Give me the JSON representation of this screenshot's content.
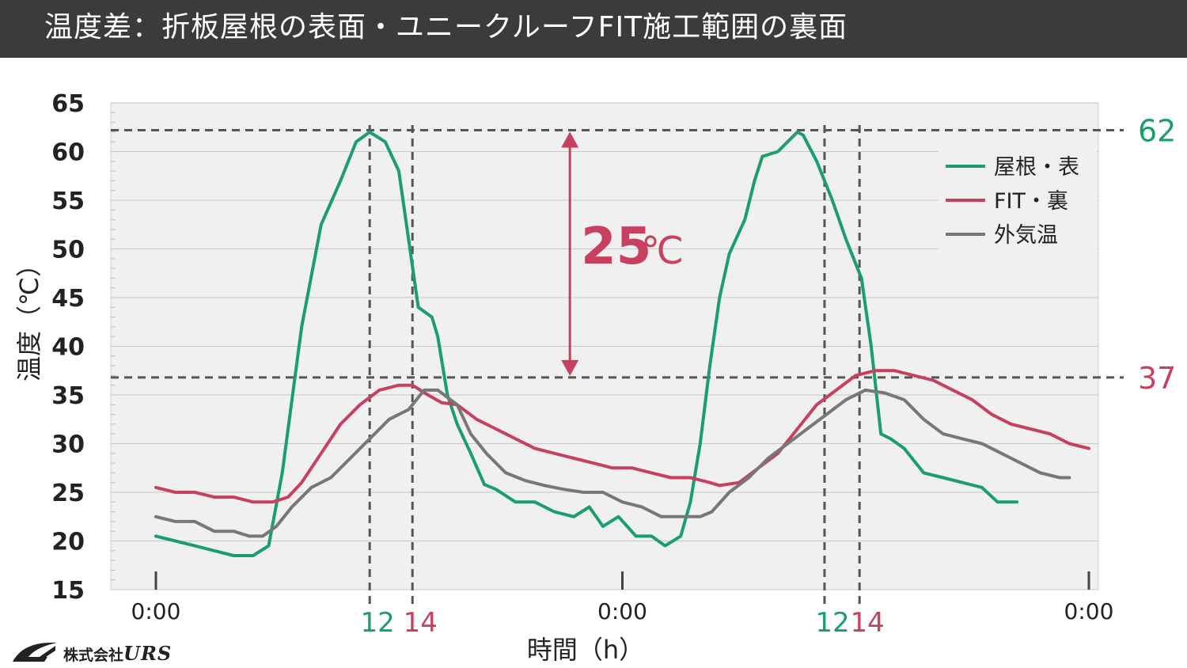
{
  "title": "温度差：折板屋根の表面・ユニークルーフFIT施工範囲の裏面",
  "logo": {
    "prefix": "株式会社",
    "brand": "URS"
  },
  "chart_data": {
    "type": "line",
    "xlabel": "時間（h）",
    "ylabel": "温度（℃）",
    "ylim": [
      15,
      65
    ],
    "yticks": [
      15,
      20,
      25,
      30,
      35,
      40,
      45,
      50,
      55,
      60,
      65
    ],
    "xlim": [
      0,
      48
    ],
    "xticks": [
      {
        "x": 0,
        "label": "0:00"
      },
      {
        "x": 24,
        "label": "0:00"
      },
      {
        "x": 48,
        "label": "0:00"
      }
    ],
    "hour_markers": [
      {
        "x": 11,
        "label": "12",
        "color": "#1a9e6a"
      },
      {
        "x": 13.2,
        "label": "14",
        "color": "#c8405f"
      },
      {
        "x": 34.4,
        "label": "12",
        "color": "#1a9e6a"
      },
      {
        "x": 36.2,
        "label": "14",
        "color": "#c8405f"
      }
    ],
    "reference_lines": [
      {
        "y": 62.2,
        "label": "62",
        "color": "#1a9e6a"
      },
      {
        "y": 36.8,
        "label": "37",
        "color": "#c8405f"
      }
    ],
    "annotation": {
      "text": "25",
      "unit": "℃",
      "from": 36.8,
      "to": 62.2,
      "x": 21.3,
      "color": "#c8405f"
    },
    "legend_position": "top-right",
    "colors": {
      "grid_bg": "#f0f0f0",
      "grid_line": "#c8c8c8",
      "dash": "#555555"
    },
    "series": [
      {
        "name": "屋根・表",
        "color": "#1a9e6a",
        "points": [
          [
            0,
            20.5
          ],
          [
            1,
            20
          ],
          [
            2,
            19.5
          ],
          [
            3,
            19
          ],
          [
            4,
            18.5
          ],
          [
            5,
            18.5
          ],
          [
            5.8,
            19.5
          ],
          [
            6.5,
            27
          ],
          [
            7.5,
            42
          ],
          [
            8.5,
            52.5
          ],
          [
            9.5,
            57
          ],
          [
            10.3,
            61
          ],
          [
            11,
            62
          ],
          [
            11.8,
            61
          ],
          [
            12.5,
            58
          ],
          [
            13,
            51
          ],
          [
            13.5,
            44
          ],
          [
            14.2,
            43
          ],
          [
            14.5,
            41
          ],
          [
            15,
            35
          ],
          [
            15.5,
            32
          ],
          [
            16.2,
            29
          ],
          [
            16.9,
            25.8
          ],
          [
            17.5,
            25.3
          ],
          [
            18.5,
            24
          ],
          [
            19.5,
            24
          ],
          [
            20.5,
            23
          ],
          [
            21.5,
            22.5
          ],
          [
            22.3,
            23.5
          ],
          [
            23,
            21.5
          ],
          [
            23.8,
            22.5
          ],
          [
            24.7,
            20.5
          ],
          [
            25.5,
            20.5
          ],
          [
            26.2,
            19.5
          ],
          [
            27,
            20.5
          ],
          [
            27.5,
            24
          ],
          [
            28,
            30
          ],
          [
            28.5,
            38
          ],
          [
            29,
            45
          ],
          [
            29.5,
            49.5
          ],
          [
            30.3,
            53
          ],
          [
            30.8,
            57
          ],
          [
            31.2,
            59.5
          ],
          [
            32,
            60
          ],
          [
            32.5,
            61
          ],
          [
            33,
            62
          ],
          [
            33.3,
            61.7
          ],
          [
            34,
            59
          ],
          [
            34.8,
            55
          ],
          [
            35.5,
            51
          ],
          [
            36.3,
            47
          ],
          [
            36.8,
            40
          ],
          [
            37.3,
            31
          ],
          [
            37.8,
            30.5
          ],
          [
            38.5,
            29.5
          ],
          [
            39.5,
            27
          ],
          [
            40.5,
            26.5
          ],
          [
            41.5,
            26
          ],
          [
            42.5,
            25.5
          ],
          [
            43.3,
            24
          ],
          [
            44.3,
            24
          ]
        ]
      },
      {
        "name": "FIT・裏",
        "color": "#c8405f",
        "points": [
          [
            0,
            25.5
          ],
          [
            1,
            25
          ],
          [
            2,
            25
          ],
          [
            3,
            24.5
          ],
          [
            4,
            24.5
          ],
          [
            5,
            24
          ],
          [
            6,
            24
          ],
          [
            6.8,
            24.5
          ],
          [
            7.5,
            26
          ],
          [
            8.5,
            29
          ],
          [
            9.5,
            32
          ],
          [
            10.5,
            34
          ],
          [
            11.5,
            35.5
          ],
          [
            12.5,
            36
          ],
          [
            13.2,
            36
          ],
          [
            14,
            35
          ],
          [
            14.7,
            34.2
          ],
          [
            15.5,
            34
          ],
          [
            16.5,
            32.5
          ],
          [
            17.5,
            31.5
          ],
          [
            18.5,
            30.5
          ],
          [
            19.5,
            29.5
          ],
          [
            20.5,
            29
          ],
          [
            21.5,
            28.5
          ],
          [
            22.5,
            28
          ],
          [
            23.5,
            27.5
          ],
          [
            24.5,
            27.5
          ],
          [
            25.5,
            27
          ],
          [
            26.5,
            26.5
          ],
          [
            27.5,
            26.5
          ],
          [
            28.5,
            26
          ],
          [
            29,
            25.7
          ],
          [
            30,
            26
          ],
          [
            31,
            27.5
          ],
          [
            32,
            29
          ],
          [
            33,
            31.5
          ],
          [
            34,
            34
          ],
          [
            35,
            35.5
          ],
          [
            36,
            37
          ],
          [
            37,
            37.5
          ],
          [
            38,
            37.5
          ],
          [
            39,
            37
          ],
          [
            40,
            36.5
          ],
          [
            41,
            35.5
          ],
          [
            42,
            34.5
          ],
          [
            43,
            33
          ],
          [
            44,
            32
          ],
          [
            45,
            31.5
          ],
          [
            46,
            31
          ],
          [
            47,
            30
          ],
          [
            48,
            29.5
          ]
        ]
      },
      {
        "name": "外気温",
        "color": "#777777",
        "points": [
          [
            0,
            22.5
          ],
          [
            1,
            22
          ],
          [
            2,
            22
          ],
          [
            3,
            21
          ],
          [
            4,
            21
          ],
          [
            4.8,
            20.5
          ],
          [
            5.5,
            20.5
          ],
          [
            6.2,
            21.5
          ],
          [
            7,
            23.5
          ],
          [
            8,
            25.5
          ],
          [
            9,
            26.5
          ],
          [
            10,
            28.5
          ],
          [
            11,
            30.5
          ],
          [
            12,
            32.5
          ],
          [
            13,
            33.5
          ],
          [
            13.8,
            35.5
          ],
          [
            14.5,
            35.5
          ],
          [
            15.5,
            34
          ],
          [
            16.2,
            31
          ],
          [
            17,
            29
          ],
          [
            18,
            27
          ],
          [
            19,
            26.2
          ],
          [
            20,
            25.7
          ],
          [
            21,
            25.3
          ],
          [
            22,
            25
          ],
          [
            23,
            25
          ],
          [
            24,
            24
          ],
          [
            25,
            23.5
          ],
          [
            26,
            22.5
          ],
          [
            27,
            22.5
          ],
          [
            28,
            22.5
          ],
          [
            28.6,
            23
          ],
          [
            29.5,
            25
          ],
          [
            30.5,
            26.5
          ],
          [
            31.5,
            28.5
          ],
          [
            32.5,
            30
          ],
          [
            33.5,
            31.5
          ],
          [
            34.5,
            33
          ],
          [
            35.5,
            34.5
          ],
          [
            36.5,
            35.5
          ],
          [
            37.5,
            35.2
          ],
          [
            38.5,
            34.5
          ],
          [
            39.5,
            32.5
          ],
          [
            40.5,
            31
          ],
          [
            41.5,
            30.5
          ],
          [
            42.5,
            30
          ],
          [
            43.5,
            29
          ],
          [
            44.5,
            28
          ],
          [
            45.5,
            27
          ],
          [
            46.5,
            26.5
          ],
          [
            47,
            26.5
          ]
        ]
      }
    ]
  }
}
